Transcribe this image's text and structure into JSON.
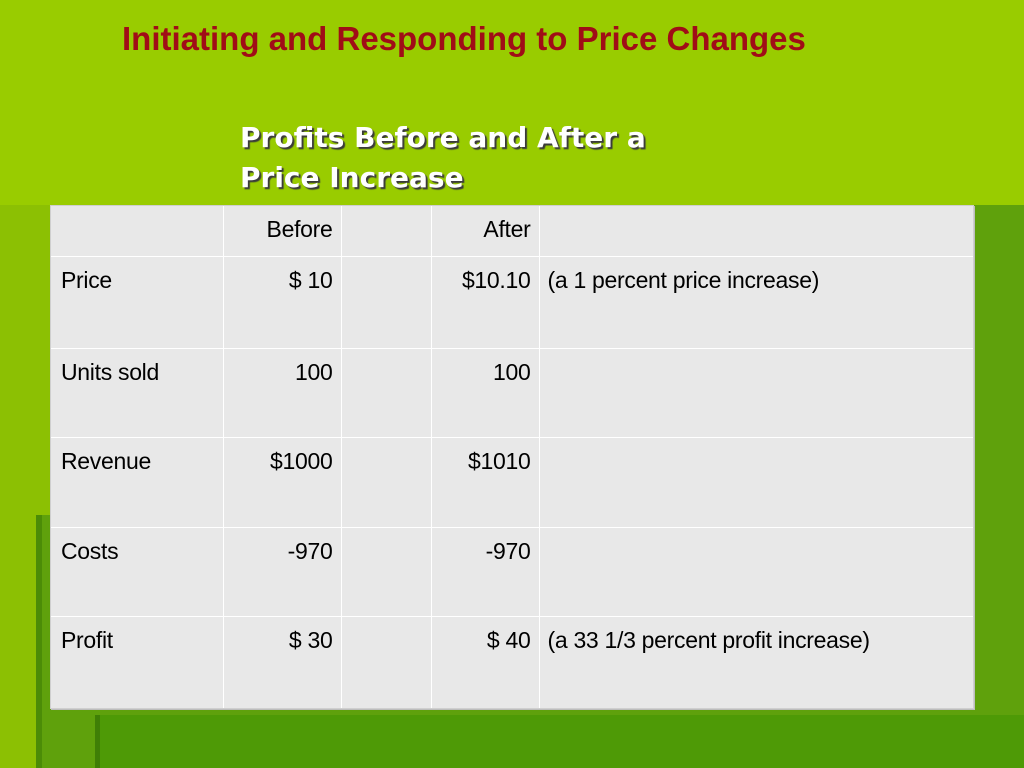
{
  "slide": {
    "title": "Initiating and Responding to Price Changes",
    "table_heading_line1": "Profits Before and After a",
    "table_heading_line2": "Price Increase"
  },
  "colors": {
    "background": "#99cc00",
    "title": "#a00d17",
    "table_background": "#e8e8e8"
  },
  "table": {
    "columns": [
      "",
      "Before",
      "",
      "After",
      ""
    ],
    "rows": [
      {
        "label": "Price",
        "before": "$  10",
        "after": "$10.10",
        "note": "(a 1 percent price increase)"
      },
      {
        "label": "Units sold",
        "before": "100",
        "after": "100",
        "note": ""
      },
      {
        "label": "Revenue",
        "before": "$1000",
        "after": "$1010",
        "note": ""
      },
      {
        "label": "Costs",
        "before": "-970",
        "after": "-970",
        "note": ""
      },
      {
        "label": "Profit",
        "before": "$  30",
        "after": "$  40",
        "note": "(a 33 1/3 percent profit increase)"
      }
    ]
  }
}
